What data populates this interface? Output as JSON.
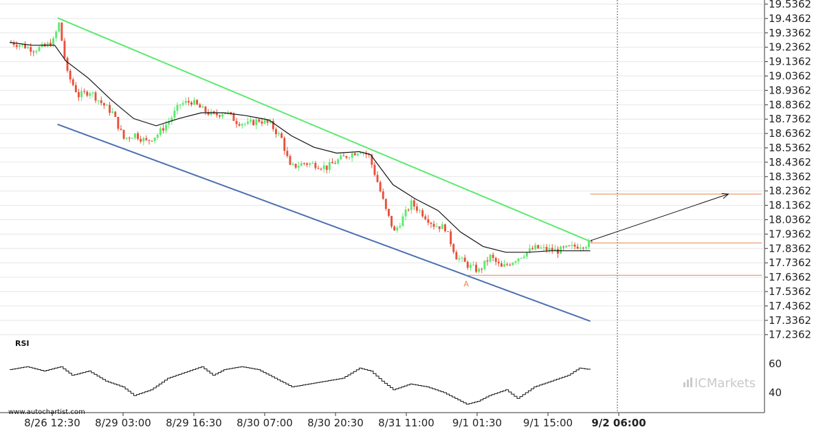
{
  "chart_data": {
    "type": "candlestick",
    "y_ticks": [
      "19.5362",
      "19.4362",
      "19.3362",
      "19.2362",
      "19.1362",
      "19.0362",
      "18.9362",
      "18.8362",
      "18.7362",
      "18.6362",
      "18.5362",
      "18.4362",
      "18.3362",
      "18.2362",
      "18.1362",
      "18.0362",
      "17.9362",
      "17.8362",
      "17.7362",
      "17.6362",
      "17.5362",
      "17.4362",
      "17.3362",
      "17.2362"
    ],
    "ylim": [
      17.2362,
      19.5362
    ],
    "x_ticks": [
      "8/26 12:30",
      "8/29 03:00",
      "8/29 16:30",
      "8/30 07:00",
      "8/30 20:30",
      "8/31 11:00",
      "9/1 01:30",
      "9/1 15:00",
      "9/2 06:00"
    ],
    "current_time_label": "9/2 06:00",
    "price_path": [
      [
        0,
        19.27
      ],
      [
        4,
        19.25
      ],
      [
        8,
        19.22
      ],
      [
        12,
        19.24
      ],
      [
        15,
        19.28
      ],
      [
        17,
        19.4
      ],
      [
        20,
        19.05
      ],
      [
        24,
        18.9
      ],
      [
        28,
        18.93
      ],
      [
        32,
        18.85
      ],
      [
        36,
        18.78
      ],
      [
        40,
        18.6
      ],
      [
        44,
        18.63
      ],
      [
        48,
        18.58
      ],
      [
        52,
        18.63
      ],
      [
        56,
        18.72
      ],
      [
        60,
        18.84
      ],
      [
        64,
        18.86
      ],
      [
        68,
        18.8
      ],
      [
        72,
        18.76
      ],
      [
        76,
        18.79
      ],
      [
        80,
        18.72
      ],
      [
        84,
        18.7
      ],
      [
        88,
        18.73
      ],
      [
        92,
        18.7
      ],
      [
        96,
        18.6
      ],
      [
        99,
        18.4
      ],
      [
        104,
        18.43
      ],
      [
        108,
        18.42
      ],
      [
        112,
        18.4
      ],
      [
        116,
        18.45
      ],
      [
        120,
        18.49
      ],
      [
        124,
        18.52
      ],
      [
        127,
        18.48
      ],
      [
        130,
        18.3
      ],
      [
        133,
        18.1
      ],
      [
        136,
        17.95
      ],
      [
        139,
        18.05
      ],
      [
        142,
        18.15
      ],
      [
        146,
        18.08
      ],
      [
        150,
        18.0
      ],
      [
        154,
        17.98
      ],
      [
        158,
        17.78
      ],
      [
        162,
        17.72
      ],
      [
        166,
        17.68
      ],
      [
        170,
        17.78
      ],
      [
        174,
        17.7
      ],
      [
        178,
        17.75
      ],
      [
        182,
        17.8
      ],
      [
        186,
        17.84
      ],
      [
        190,
        17.83
      ],
      [
        194,
        17.82
      ],
      [
        198,
        17.84
      ],
      [
        202,
        17.86
      ],
      [
        206,
        17.87
      ]
    ],
    "ma_path": [
      [
        0,
        19.27
      ],
      [
        8,
        19.25
      ],
      [
        16,
        19.25
      ],
      [
        20,
        19.14
      ],
      [
        28,
        19.02
      ],
      [
        36,
        18.87
      ],
      [
        44,
        18.74
      ],
      [
        52,
        18.69
      ],
      [
        60,
        18.74
      ],
      [
        68,
        18.78
      ],
      [
        76,
        18.78
      ],
      [
        84,
        18.76
      ],
      [
        92,
        18.73
      ],
      [
        100,
        18.62
      ],
      [
        108,
        18.54
      ],
      [
        116,
        18.5
      ],
      [
        124,
        18.51
      ],
      [
        128,
        18.49
      ],
      [
        136,
        18.28
      ],
      [
        144,
        18.18
      ],
      [
        152,
        18.1
      ],
      [
        160,
        17.95
      ],
      [
        168,
        17.85
      ],
      [
        176,
        17.81
      ],
      [
        184,
        17.81
      ],
      [
        192,
        17.82
      ],
      [
        200,
        17.82
      ],
      [
        206,
        17.82
      ]
    ],
    "channel_upper": {
      "from": [
        17,
        19.44
      ],
      "to": [
        206,
        17.885
      ],
      "color": "#5bea6e"
    },
    "channel_lower": {
      "from": [
        17,
        18.7
      ],
      "to": [
        206,
        17.33
      ],
      "color": "#4a6fb0"
    },
    "levels": [
      {
        "price": 18.215,
        "from_bar": 206,
        "color": "#e8824a"
      },
      {
        "price": 17.875,
        "from_bar": 206,
        "color": "#e8824a"
      },
      {
        "price": 17.65,
        "from_bar": 162,
        "color": "#e8824a"
      }
    ],
    "forecast_arrow": {
      "from": [
        206,
        17.89
      ],
      "to": [
        255,
        18.215
      ],
      "color": "#111111"
    },
    "point_label": {
      "text": "A",
      "bar": 162,
      "price": 17.6,
      "color": "#e8824a"
    },
    "bull_color": "#5bea6e",
    "bear_color": "#e8503a",
    "rsi": {
      "title": "RSI",
      "levels": [
        "60",
        "40"
      ],
      "ylim": [
        30,
        70
      ],
      "path": [
        [
          0,
          56
        ],
        [
          6,
          58
        ],
        [
          12,
          55
        ],
        [
          18,
          58
        ],
        [
          22,
          52
        ],
        [
          28,
          55
        ],
        [
          34,
          48
        ],
        [
          40,
          44
        ],
        [
          44,
          38
        ],
        [
          50,
          42
        ],
        [
          56,
          50
        ],
        [
          62,
          54
        ],
        [
          68,
          58
        ],
        [
          72,
          52
        ],
        [
          76,
          56
        ],
        [
          82,
          58
        ],
        [
          88,
          56
        ],
        [
          94,
          50
        ],
        [
          100,
          44
        ],
        [
          106,
          46
        ],
        [
          112,
          48
        ],
        [
          118,
          50
        ],
        [
          124,
          57
        ],
        [
          128,
          55
        ],
        [
          132,
          48
        ],
        [
          136,
          42
        ],
        [
          142,
          46
        ],
        [
          148,
          44
        ],
        [
          154,
          40
        ],
        [
          158,
          36
        ],
        [
          162,
          32
        ],
        [
          166,
          34
        ],
        [
          170,
          38
        ],
        [
          176,
          42
        ],
        [
          180,
          36
        ],
        [
          186,
          44
        ],
        [
          192,
          48
        ],
        [
          198,
          52
        ],
        [
          202,
          57
        ],
        [
          206,
          56
        ]
      ]
    }
  },
  "watermark": {
    "text": "www.autochartist.com"
  },
  "brand": {
    "text": "ICMarkets",
    "color": "#c9c9c9"
  }
}
